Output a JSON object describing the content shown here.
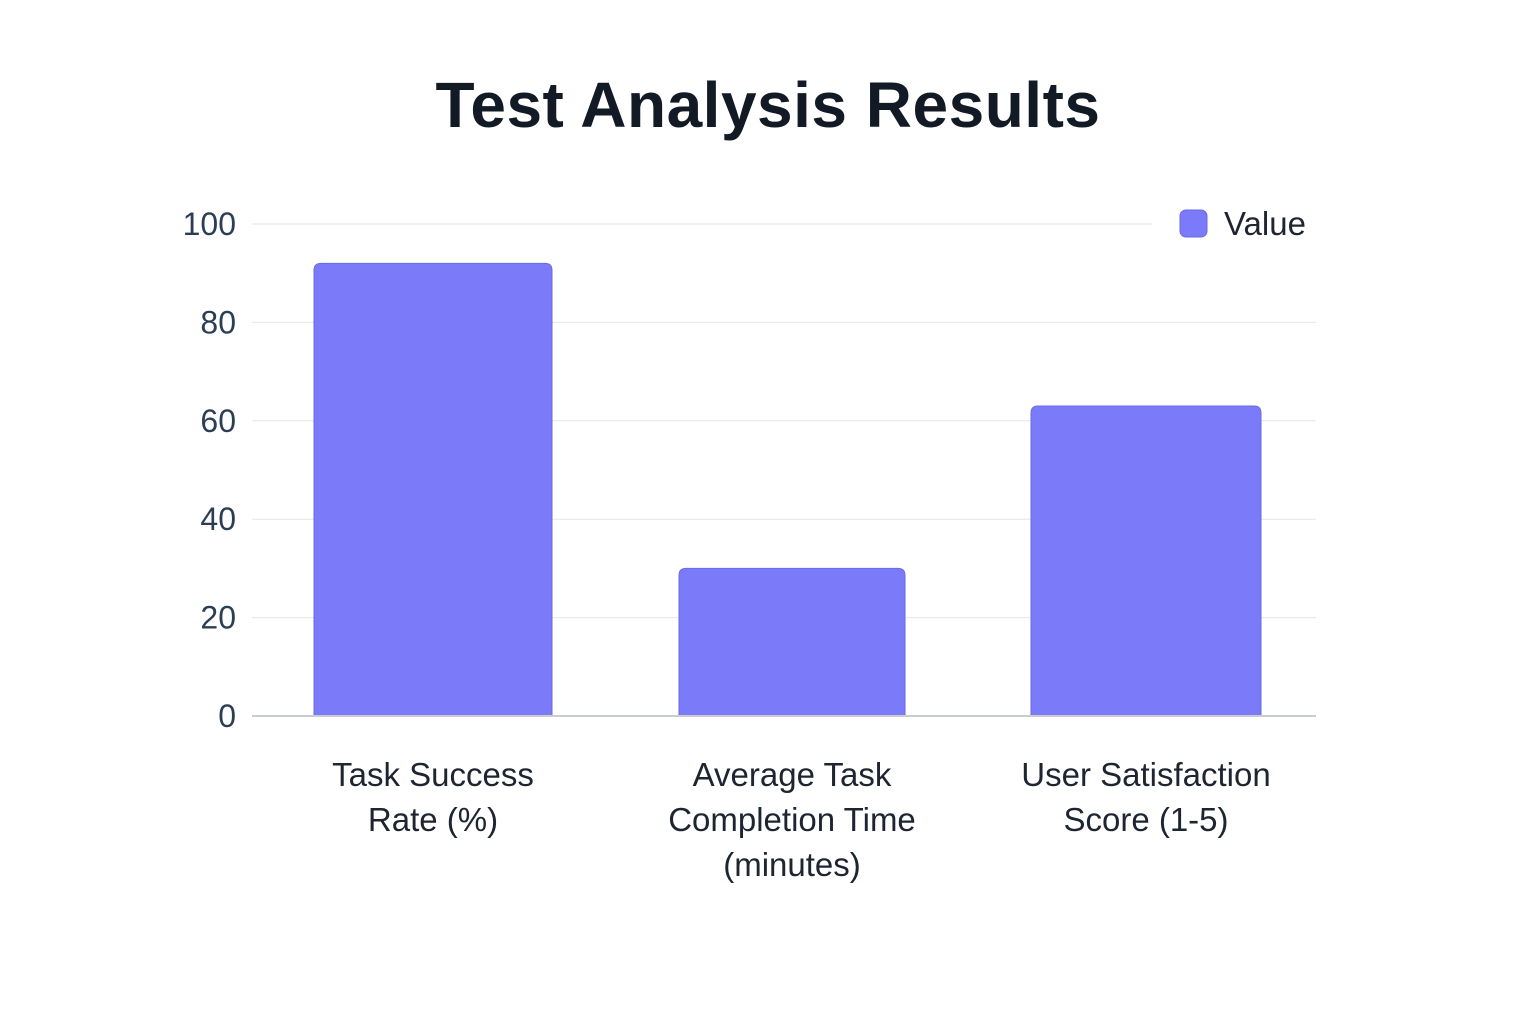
{
  "chart_data": {
    "type": "bar",
    "title": "Test Analysis Results",
    "categories": [
      [
        "Task Success",
        "Rate (%)"
      ],
      [
        "Average Task",
        "Completion Time",
        "(minutes)"
      ],
      [
        "User Satisfaction",
        "Score (1-5)"
      ]
    ],
    "series": [
      {
        "name": "Value",
        "values": [
          92,
          30,
          63
        ],
        "color": "#7b7bfa"
      }
    ],
    "xlabel": "",
    "ylabel": "",
    "ylim": [
      0,
      100
    ],
    "yticks": [
      0,
      20,
      40,
      60,
      80,
      100
    ],
    "grid": true,
    "legend_position": "top-right"
  }
}
